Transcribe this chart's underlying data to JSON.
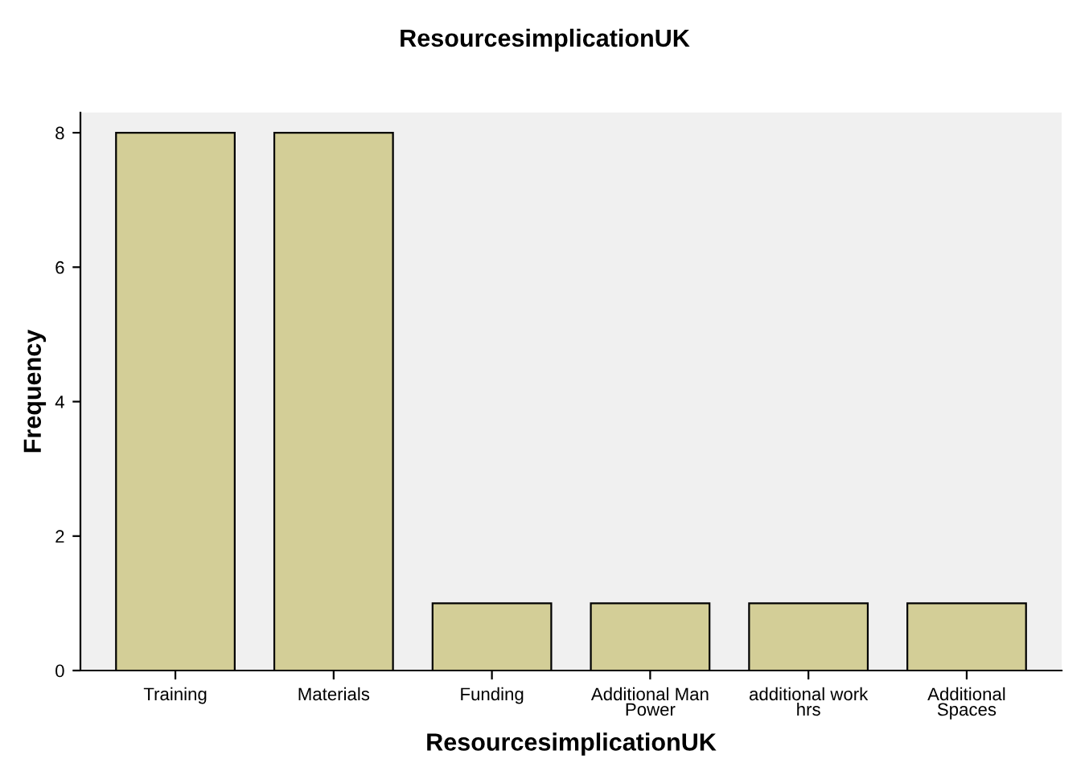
{
  "chart_data": {
    "type": "bar",
    "title": "ResourcesimplicationUK",
    "xlabel": "ResourcesimplicationUK",
    "ylabel": "Frequency",
    "categories": [
      "Training",
      "Materials",
      "Funding",
      "Additional Man\nPower",
      "additional work\nhrs",
      "Additional\nSpaces"
    ],
    "values": [
      8,
      8,
      1,
      1,
      1,
      1
    ],
    "color": "#d3ce97",
    "ylim": [
      0,
      8.3
    ],
    "yticks": [
      0,
      2,
      4,
      6,
      8
    ],
    "grid": false
  }
}
